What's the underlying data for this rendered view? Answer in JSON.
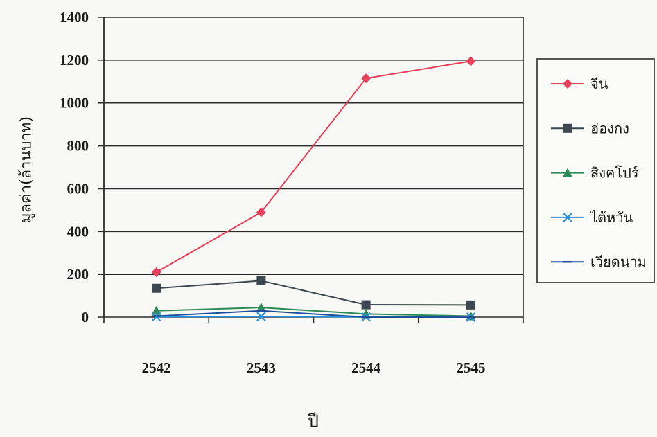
{
  "chart_data": {
    "type": "line",
    "categories": [
      "2542",
      "2543",
      "2544",
      "2545"
    ],
    "xlabel": "ปี",
    "ylabel": "มูลค่า(ล้านบาท)",
    "ylim": [
      0,
      1400
    ],
    "yticks": [
      0,
      200,
      400,
      600,
      800,
      1000,
      1200,
      1400
    ],
    "grid": true,
    "legend": "right",
    "series": [
      {
        "name": "จีน",
        "values": [
          210,
          490,
          1115,
          1195
        ],
        "color": "#e8405a",
        "marker": "diamond"
      },
      {
        "name": "ฮ่องกง",
        "values": [
          135,
          170,
          58,
          57
        ],
        "color": "#3d4752",
        "marker": "square"
      },
      {
        "name": "สิงคโปร์",
        "values": [
          30,
          45,
          15,
          5
        ],
        "color": "#2e8b57",
        "marker": "triangle"
      },
      {
        "name": "ไต้หวัน",
        "values": [
          2,
          3,
          1,
          0
        ],
        "color": "#2a8fd8",
        "marker": "x"
      },
      {
        "name": "เวียดนาม",
        "values": [
          5,
          30,
          0,
          0
        ],
        "color": "#1d4f9a",
        "marker": "dash"
      }
    ]
  }
}
